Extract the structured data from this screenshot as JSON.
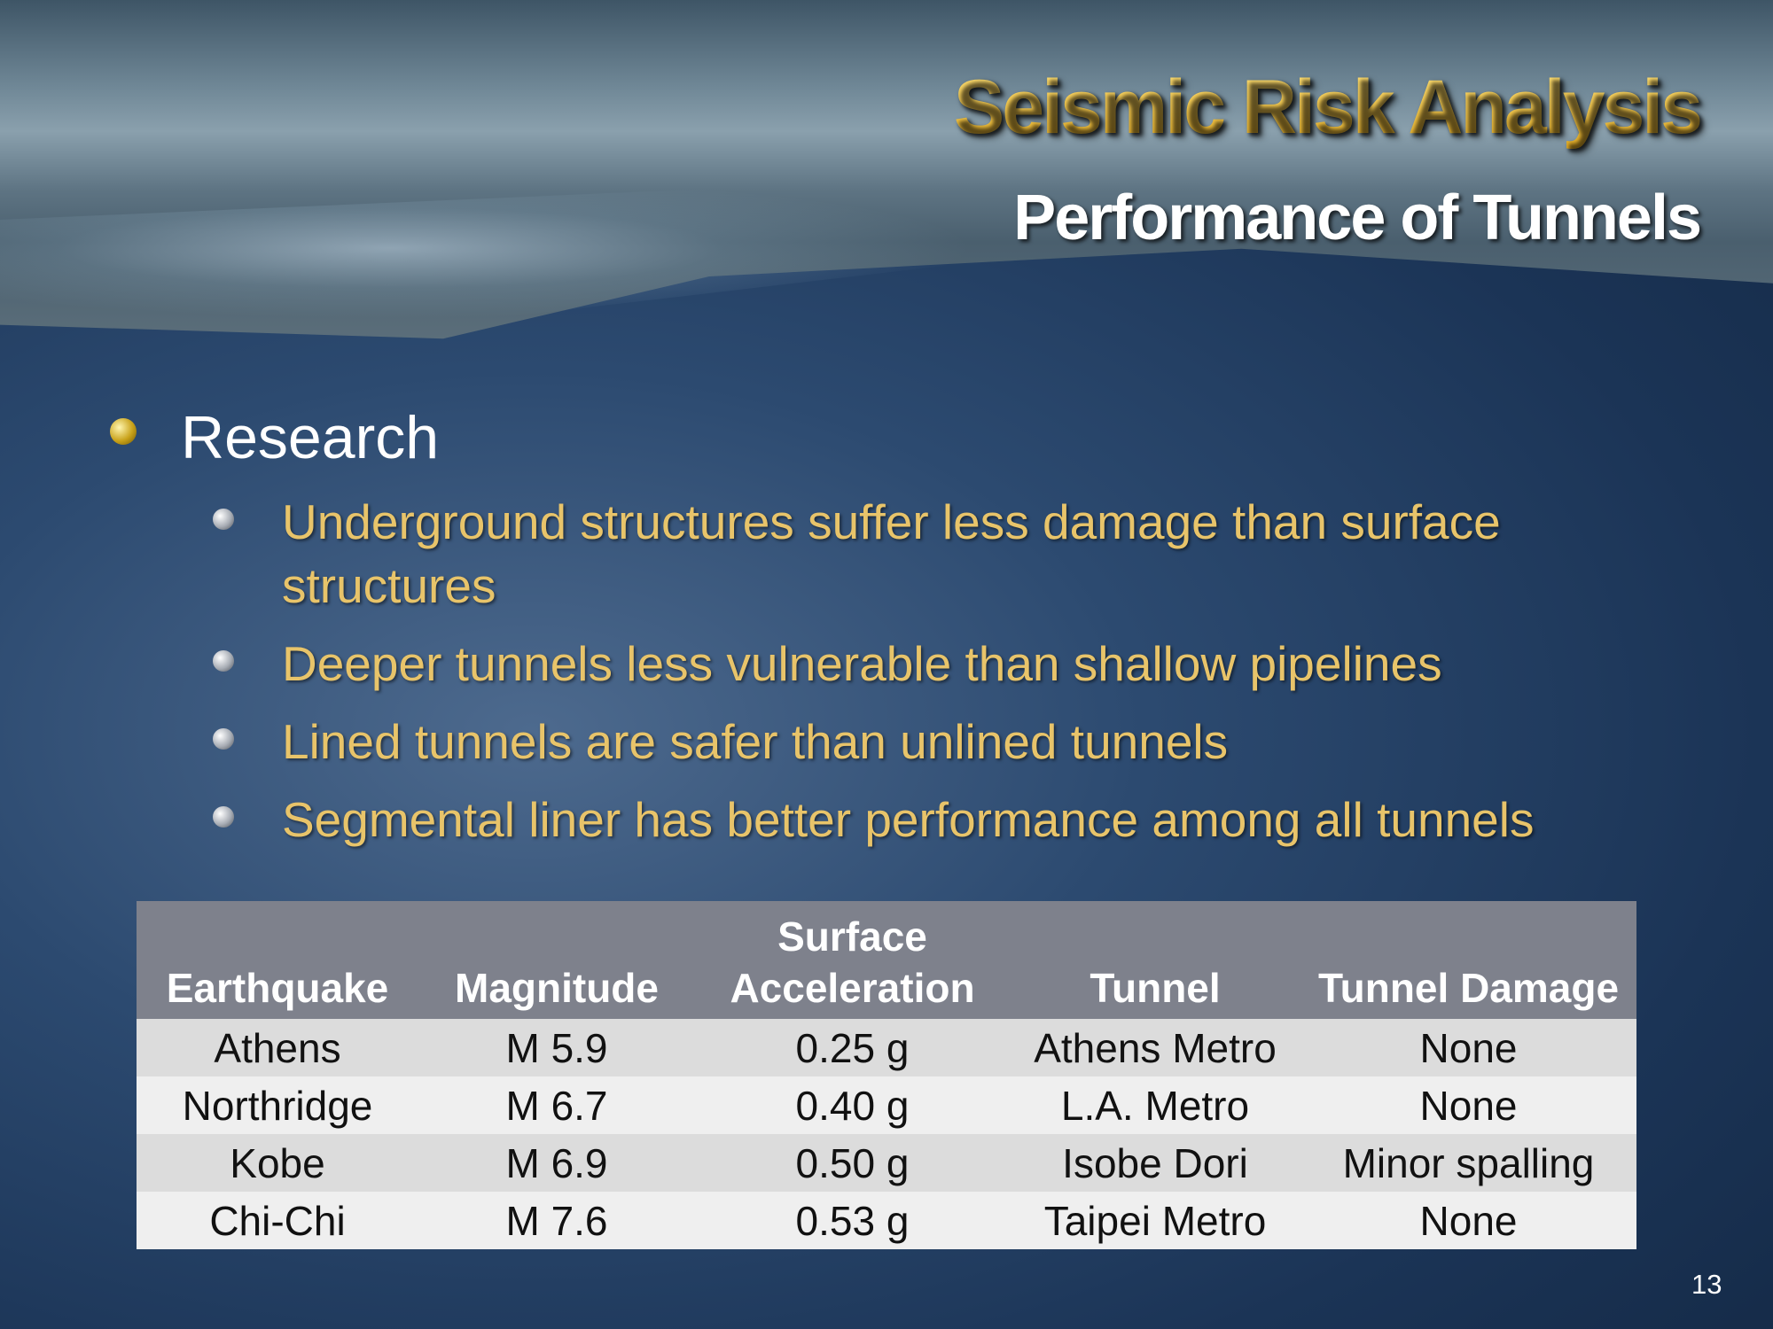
{
  "header": {
    "title": "Seismic Risk Analysis",
    "subtitle": "Performance of Tunnels"
  },
  "bullets": {
    "heading": "Research",
    "items": [
      "Underground structures suffer less damage than surface structures",
      "Deeper tunnels less vulnerable than shallow pipelines",
      "Lined tunnels are safer than unlined tunnels",
      "Segmental liner has better performance among all tunnels"
    ]
  },
  "table": {
    "columns": [
      "Earthquake",
      "Magnitude",
      "Surface Acceleration",
      "Tunnel",
      "Tunnel Damage"
    ],
    "rows": [
      [
        "Athens",
        "M 5.9",
        "0.25 g",
        "Athens Metro",
        "None"
      ],
      [
        "Northridge",
        "M 6.7",
        "0.40 g",
        "L.A. Metro",
        "None"
      ],
      [
        "Kobe",
        "M 6.9",
        "0.50 g",
        "Isobe Dori",
        "Minor spalling"
      ],
      [
        "Chi-Chi",
        "M 7.6",
        "0.53 g",
        "Taipei Metro",
        "None"
      ]
    ]
  },
  "page_number": "13"
}
